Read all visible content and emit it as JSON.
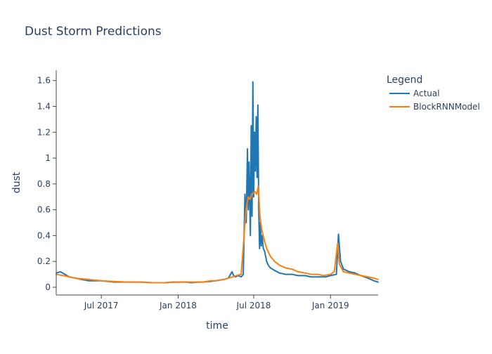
{
  "chart_data": {
    "type": "line",
    "title": "Dust Storm Predictions",
    "xlabel": "time",
    "ylabel": "dust",
    "x_range": [
      "2017-03-15",
      "2019-04-25"
    ],
    "ylim": [
      -0.06,
      1.68
    ],
    "yticks": [
      0,
      0.2,
      0.4,
      0.6,
      0.8,
      1,
      1.2,
      1.4,
      1.6
    ],
    "ytick_labels": [
      "0",
      "0.2",
      "0.4",
      "0.6",
      "0.8",
      "1",
      "1.2",
      "1.4",
      "1.6"
    ],
    "xticks": [
      "2017-07-01",
      "2018-01-01",
      "2018-07-01",
      "2019-01-01"
    ],
    "xtick_labels": [
      "Jul 2017",
      "Jan 2018",
      "Jul 2018",
      "Jan 2019"
    ],
    "grid": false,
    "legend": {
      "title": "Legend",
      "position": "top-right"
    },
    "series": [
      {
        "name": "Actual",
        "color": "#1f77b4",
        "x": [
          "2017-03-15",
          "2017-03-25",
          "2017-04-05",
          "2017-04-15",
          "2017-05-01",
          "2017-05-15",
          "2017-06-01",
          "2017-06-15",
          "2017-07-01",
          "2017-08-01",
          "2017-09-01",
          "2017-10-01",
          "2017-11-01",
          "2017-12-01",
          "2017-12-20",
          "2018-01-01",
          "2018-01-20",
          "2018-02-01",
          "2018-02-20",
          "2018-03-01",
          "2018-03-20",
          "2018-04-01",
          "2018-04-20",
          "2018-05-01",
          "2018-05-10",
          "2018-05-14",
          "2018-05-18",
          "2018-05-25",
          "2018-06-01",
          "2018-06-06",
          "2018-06-10",
          "2018-06-13",
          "2018-06-16",
          "2018-06-18",
          "2018-06-20",
          "2018-06-23",
          "2018-06-25",
          "2018-06-27",
          "2018-06-29",
          "2018-07-01",
          "2018-07-03",
          "2018-07-05",
          "2018-07-07",
          "2018-07-09",
          "2018-07-11",
          "2018-07-13",
          "2018-07-15",
          "2018-07-17",
          "2018-07-19",
          "2018-07-21",
          "2018-07-24",
          "2018-07-27",
          "2018-08-01",
          "2018-08-05",
          "2018-08-10",
          "2018-08-20",
          "2018-09-01",
          "2018-09-15",
          "2018-10-01",
          "2018-10-15",
          "2018-11-01",
          "2018-11-15",
          "2018-12-01",
          "2018-12-20",
          "2019-01-01",
          "2019-01-15",
          "2019-01-20",
          "2019-01-25",
          "2019-02-01",
          "2019-02-15",
          "2019-03-01",
          "2019-03-15",
          "2019-04-01",
          "2019-04-15",
          "2019-04-25"
        ],
        "y": [
          0.11,
          0.12,
          0.1,
          0.08,
          0.07,
          0.06,
          0.05,
          0.05,
          0.05,
          0.04,
          0.04,
          0.04,
          0.035,
          0.035,
          0.04,
          0.04,
          0.04,
          0.035,
          0.04,
          0.04,
          0.045,
          0.05,
          0.06,
          0.07,
          0.12,
          0.09,
          0.08,
          0.09,
          0.08,
          0.1,
          0.72,
          0.5,
          1.07,
          0.6,
          0.97,
          0.4,
          1.25,
          0.55,
          1.59,
          0.7,
          1.2,
          0.9,
          1.32,
          0.85,
          1.41,
          0.6,
          0.3,
          0.5,
          0.32,
          0.4,
          0.3,
          0.28,
          0.2,
          0.17,
          0.15,
          0.13,
          0.11,
          0.1,
          0.1,
          0.09,
          0.09,
          0.08,
          0.08,
          0.08,
          0.09,
          0.1,
          0.41,
          0.2,
          0.14,
          0.12,
          0.11,
          0.09,
          0.07,
          0.05,
          0.04
        ]
      },
      {
        "name": "BlockRNNModel",
        "color": "#ff7f0e",
        "x": [
          "2017-03-15",
          "2017-04-01",
          "2017-05-01",
          "2017-06-01",
          "2017-07-01",
          "2017-08-01",
          "2017-09-01",
          "2017-10-01",
          "2017-11-01",
          "2017-12-01",
          "2018-01-01",
          "2018-02-01",
          "2018-03-01",
          "2018-03-20",
          "2018-04-01",
          "2018-04-20",
          "2018-05-01",
          "2018-05-20",
          "2018-06-01",
          "2018-06-08",
          "2018-06-12",
          "2018-06-15",
          "2018-06-18",
          "2018-06-22",
          "2018-06-26",
          "2018-06-30",
          "2018-07-04",
          "2018-07-08",
          "2018-07-12",
          "2018-07-16",
          "2018-07-20",
          "2018-07-25",
          "2018-08-01",
          "2018-08-10",
          "2018-08-20",
          "2018-09-01",
          "2018-09-15",
          "2018-10-01",
          "2018-10-15",
          "2018-11-01",
          "2018-11-15",
          "2018-12-01",
          "2018-12-15",
          "2019-01-01",
          "2019-01-10",
          "2019-01-18",
          "2019-01-22",
          "2019-02-01",
          "2019-02-15",
          "2019-03-01",
          "2019-03-15",
          "2019-04-01",
          "2019-04-15",
          "2019-04-25"
        ],
        "y": [
          0.1,
          0.09,
          0.07,
          0.06,
          0.05,
          0.045,
          0.04,
          0.04,
          0.035,
          0.035,
          0.04,
          0.04,
          0.04,
          0.05,
          0.05,
          0.06,
          0.07,
          0.09,
          0.1,
          0.4,
          0.58,
          0.65,
          0.7,
          0.68,
          0.72,
          0.73,
          0.74,
          0.72,
          0.78,
          0.55,
          0.45,
          0.38,
          0.3,
          0.24,
          0.2,
          0.17,
          0.15,
          0.14,
          0.12,
          0.11,
          0.1,
          0.1,
          0.09,
          0.1,
          0.12,
          0.34,
          0.18,
          0.12,
          0.11,
          0.1,
          0.09,
          0.08,
          0.07,
          0.06
        ]
      }
    ]
  }
}
